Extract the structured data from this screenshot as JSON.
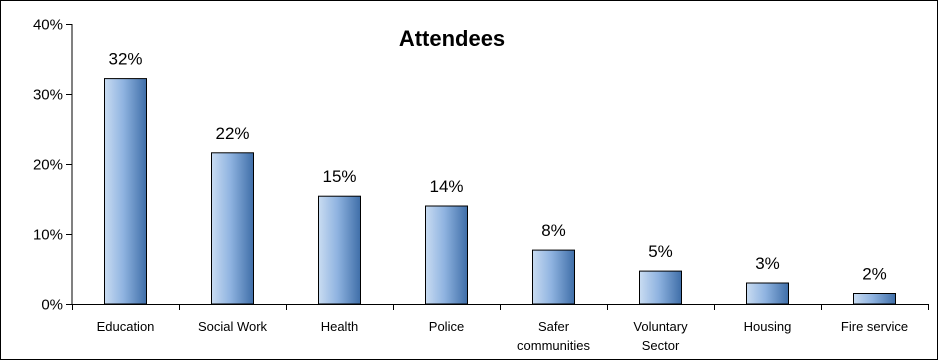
{
  "chart_data": {
    "type": "bar",
    "title": "Attendees",
    "categories": [
      "Education",
      "Social Work",
      "Health",
      "Police",
      "Safer communities",
      "Voluntary Sector",
      "Housing",
      "Fire service"
    ],
    "category_lines": [
      [
        "Education"
      ],
      [
        "Social Work"
      ],
      [
        "Health"
      ],
      [
        "Police"
      ],
      [
        "Safer",
        "communities"
      ],
      [
        "Voluntary",
        "Sector"
      ],
      [
        "Housing"
      ],
      [
        "Fire service"
      ]
    ],
    "values": [
      32,
      22,
      15,
      14,
      8,
      5,
      3,
      2
    ],
    "plotted_values": [
      32.2,
      21.6,
      15.4,
      14.0,
      7.7,
      4.7,
      3.0,
      1.5
    ],
    "data_labels": [
      "32%",
      "22%",
      "15%",
      "14%",
      "8%",
      "5%",
      "3%",
      "2%"
    ],
    "ylim": [
      0,
      40
    ],
    "yticks": [
      0,
      10,
      20,
      30,
      40
    ],
    "ytick_labels": [
      "0%",
      "10%",
      "20%",
      "30%",
      "40%"
    ],
    "xlabel": "",
    "ylabel": "",
    "grid": false,
    "legend": "none",
    "colors": {
      "bar_light": "#c9dcf2",
      "bar_mid": "#8fb3e0",
      "bar_dark": "#3f6ea8"
    }
  }
}
